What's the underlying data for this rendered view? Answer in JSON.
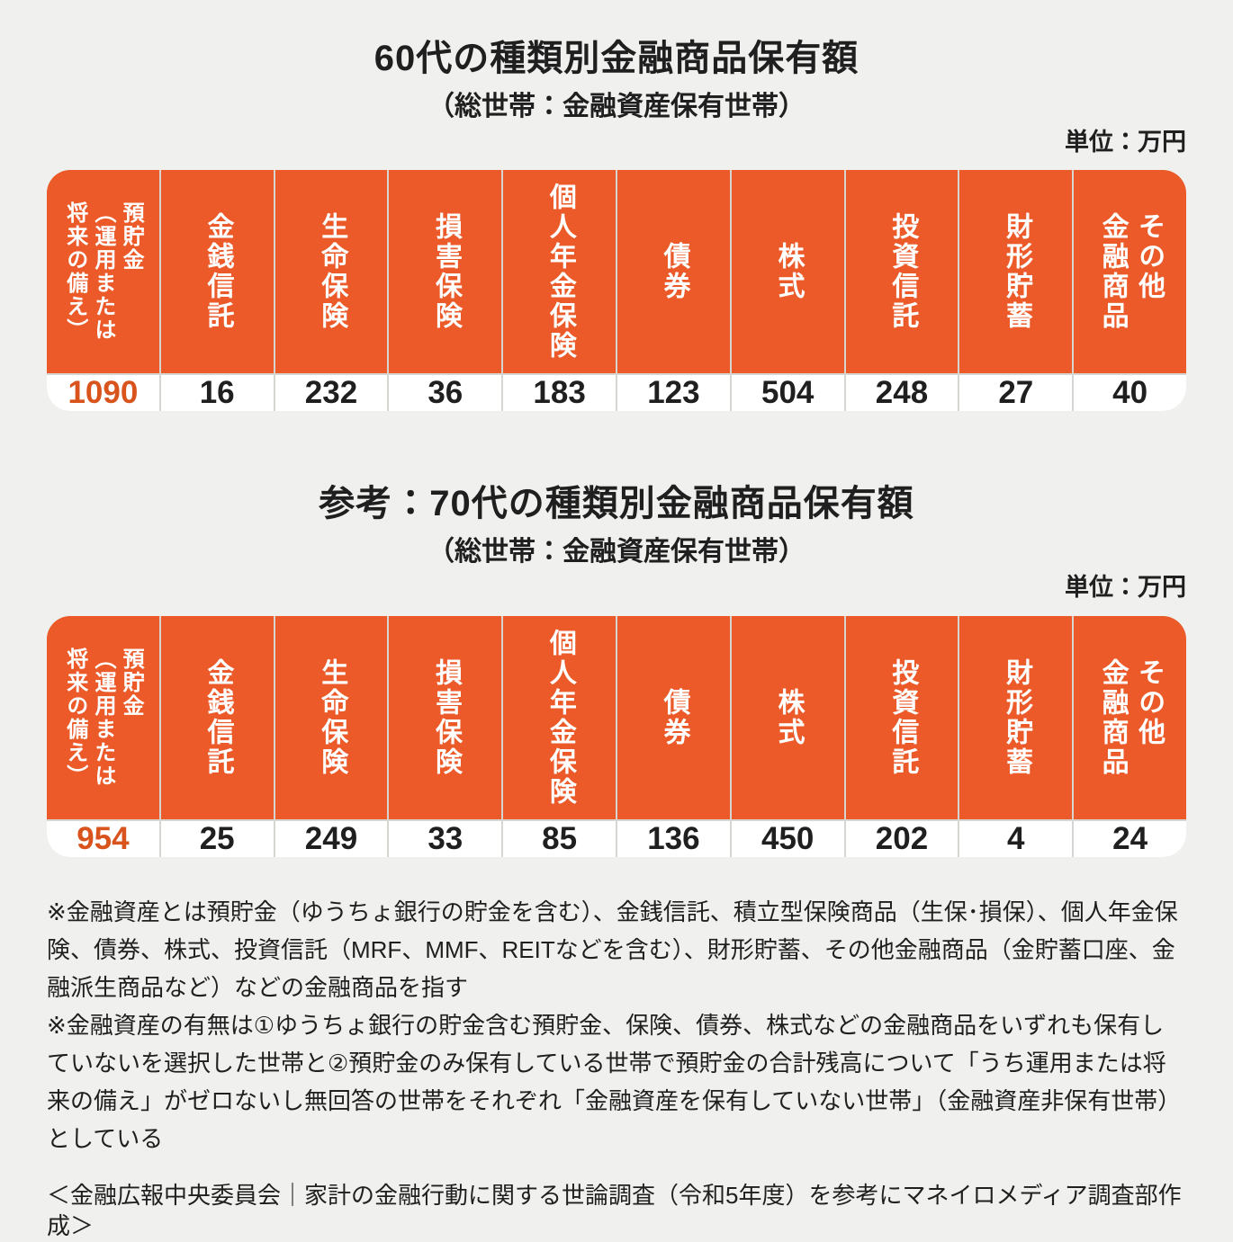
{
  "accent_color": "#EB5A28",
  "highlight_value_color": "#D9531C",
  "background_color": "#F0F0EE",
  "columns_display": [
    "預貯金\n（運用または\n将来の備え）",
    "金銭信託",
    "生命保険",
    "損害保険",
    "個人年金保険",
    "債券",
    "株式",
    "投資信託",
    "財形貯蓄",
    "その他\n金融商品"
  ],
  "section60": {
    "title": "60代の種類別金融商品保有額",
    "subtitle": "（総世帯：金融資産保有世帯）",
    "unit": "単位：万円"
  },
  "section70": {
    "title": "参考：70代の種類別金融商品保有額",
    "subtitle": "（総世帯：金融資産保有世帯）",
    "unit": "単位：万円"
  },
  "table60": {
    "values": [
      "1090",
      "16",
      "232",
      "36",
      "183",
      "123",
      "504",
      "248",
      "27",
      "40"
    ]
  },
  "table70": {
    "values": [
      "954",
      "25",
      "249",
      "33",
      "85",
      "136",
      "450",
      "202",
      "4",
      "24"
    ]
  },
  "notes": [
    "※金融資産とは預貯金（ゆうちょ銀行の貯金を含む）、金銭信託、積立型保険商品（生保･損保）、個人年金保険、債券、株式、投資信託（MRF、MMF、REITなどを含む）、財形貯蓄、その他金融商品（金貯蓄口座、金融派生商品など）などの金融商品を指す",
    "※金融資産の有無は①ゆうちょ銀行の貯金含む預貯金、保険、債券、株式などの金融商品をいずれも保有していないを選択した世帯と②預貯金のみ保有している世帯で預貯金の合計残高について「うち運用または将来の備え」がゼロないし無回答の世帯をそれぞれ「金融資産を保有していない世帯」（金融資産非保有世帯）としている"
  ],
  "source": "＜金融広報中央委員会｜家計の金融行動に関する世論調査（令和5年度）を参考にマネイロメディア調査部作成＞",
  "chart_data": [
    {
      "type": "table",
      "title": "60代の種類別金融商品保有額",
      "subtitle": "（総世帯：金融資産保有世帯）",
      "unit": "万円",
      "categories": [
        "預貯金（運用または将来の備え）",
        "金銭信託",
        "生命保険",
        "損害保険",
        "個人年金保険",
        "債券",
        "株式",
        "投資信託",
        "財形貯蓄",
        "その他金融商品"
      ],
      "values": [
        1090,
        16,
        232,
        36,
        183,
        123,
        504,
        248,
        27,
        40
      ]
    },
    {
      "type": "table",
      "title": "参考：70代の種類別金融商品保有額",
      "subtitle": "（総世帯：金融資産保有世帯）",
      "unit": "万円",
      "categories": [
        "預貯金（運用または将来の備え）",
        "金銭信託",
        "生命保険",
        "損害保険",
        "個人年金保険",
        "債券",
        "株式",
        "投資信託",
        "財形貯蓄",
        "その他金融商品"
      ],
      "values": [
        954,
        25,
        249,
        33,
        85,
        136,
        450,
        202,
        4,
        24
      ]
    }
  ]
}
